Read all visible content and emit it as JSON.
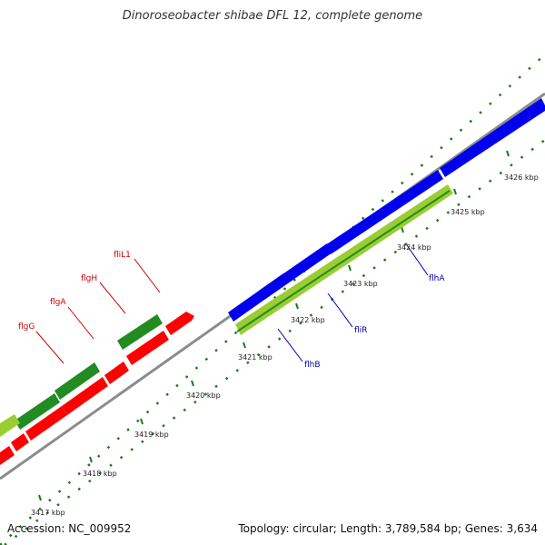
{
  "title": "Dinoroseobacter shibae DFL 12, complete genome",
  "footer": {
    "accession": "Accession: NC_009952",
    "summary": "Topology: circular; Length: 3,789,584 bp; Genes: 3,634"
  },
  "colors": {
    "backbone": "#8c8c8c",
    "forward_genes": "#0000ee",
    "reverse_genes": "#ff0000",
    "cds_dark_green": "#228b22",
    "cds_light_green": "#9acd32",
    "tick": "#1a7a1a",
    "forward_label": "#0000aa",
    "reverse_label": "#cc0000"
  },
  "ticks": [
    "3417 kbp",
    "3418 kbp",
    "3419 kbp",
    "3420 kbp",
    "3421 kbp",
    "3422 kbp",
    "3423 kbp",
    "3424 kbp",
    "3425 kbp",
    "3426 kbp"
  ],
  "gene_labels": {
    "flgG": "flgG",
    "flgA": "flgA",
    "flgH": "flgH",
    "fliL1": "fliL1",
    "flhB": "flhB",
    "fliR": "fliR",
    "flhA": "flhA"
  }
}
